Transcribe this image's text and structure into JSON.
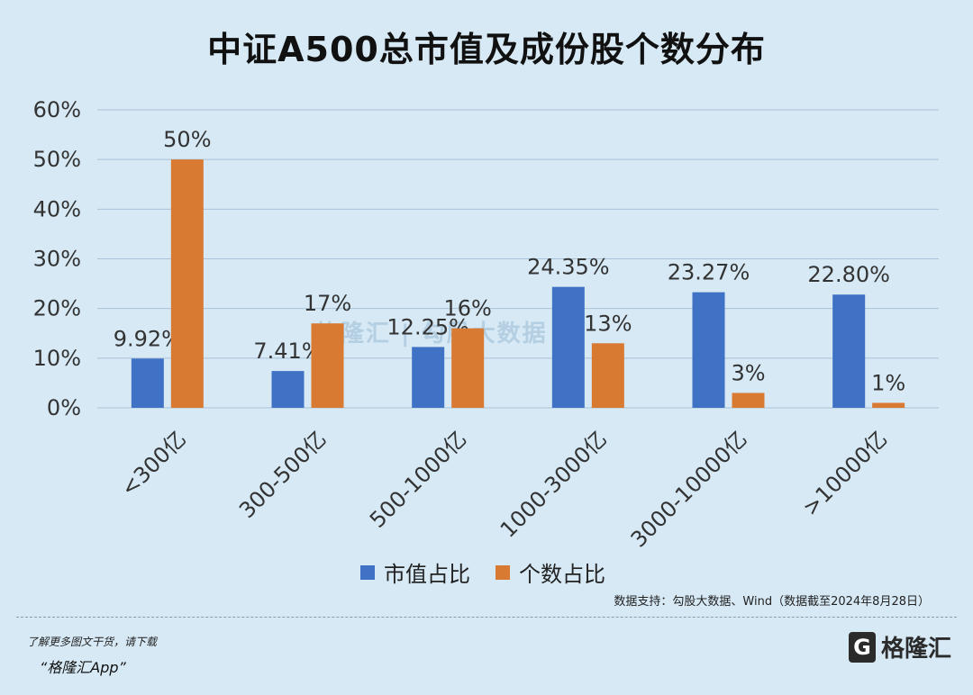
{
  "title": "中证A500总市值及成份股个数分布",
  "chart_data": {
    "type": "bar",
    "categories": [
      "<300亿",
      "300-500亿",
      "500-1000亿",
      "1000-3000亿",
      "3000-10000亿",
      ">10000亿"
    ],
    "series": [
      {
        "name": "市值占比",
        "values": [
          9.92,
          7.41,
          12.25,
          24.35,
          23.27,
          22.8
        ],
        "labels": [
          "9.92%",
          "7.41%",
          "12.25%",
          "24.35%",
          "23.27%",
          "22.80%"
        ],
        "color": "#3f72c5"
      },
      {
        "name": "个数占比",
        "values": [
          50,
          17,
          16,
          13,
          3,
          1
        ],
        "labels": [
          "50%",
          "17%",
          "16%",
          "13%",
          "3%",
          "1%"
        ],
        "color": "#d97a33"
      }
    ],
    "yticks": [
      "0%",
      "10%",
      "20%",
      "30%",
      "40%",
      "50%",
      "60%"
    ],
    "ylim": [
      0,
      60
    ],
    "grid": true,
    "legend": "bottom"
  },
  "source": "数据支持：勾股大数据、Wind（数据截至2024年8月28日）",
  "footer": {
    "promo_line1": "了解更多图文干货，请下载",
    "promo_line2": "“格隆汇App”",
    "brand_name": "格隆汇",
    "brand_mark": "G"
  },
  "watermark": "格隆汇 | 勾股大数据"
}
